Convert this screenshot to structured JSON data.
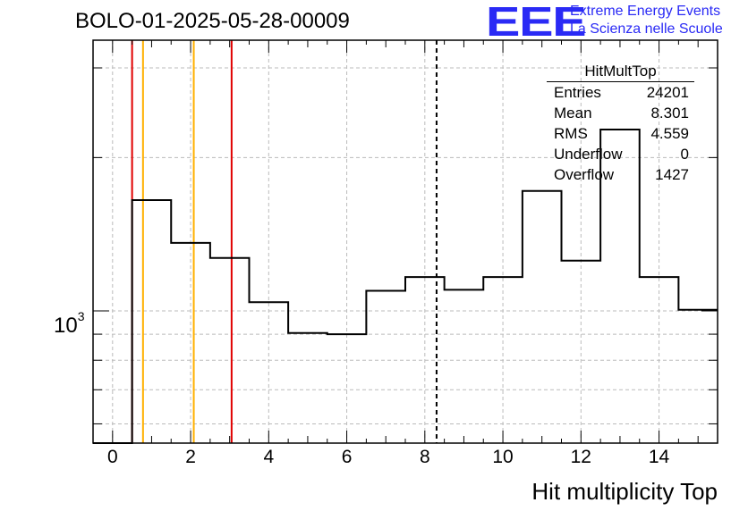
{
  "header": {
    "title": "BOLO-01-2025-05-28-00009",
    "logo_text": "EEE",
    "logo_line1": "Extreme Energy Events",
    "logo_line2": "La Scienza nelle Scuole"
  },
  "stats_box": {
    "title": "HitMultTop",
    "rows": [
      {
        "label": "Entries",
        "value": "24201"
      },
      {
        "label": "Mean",
        "value": "8.301"
      },
      {
        "label": "RMS",
        "value": "4.559"
      },
      {
        "label": "Underflow",
        "value": "0"
      },
      {
        "label": "Overflow",
        "value": "1427"
      }
    ]
  },
  "chart_data": {
    "type": "histogram",
    "title": "BOLO-01-2025-05-28-00009",
    "xlabel": "Hit multiplicity Top",
    "ylabel": "",
    "xlim": [
      -0.5,
      15.5
    ],
    "ylim": [
      550,
      3400
    ],
    "yscale": "log",
    "xticks": [
      0,
      2,
      4,
      6,
      8,
      10,
      12,
      14
    ],
    "ytick_base": "10",
    "ytick_exponent": "3",
    "grid": true,
    "bins": [
      {
        "x": 0,
        "value": 0
      },
      {
        "x": 1,
        "value": 1650
      },
      {
        "x": 2,
        "value": 1360
      },
      {
        "x": 3,
        "value": 1270
      },
      {
        "x": 4,
        "value": 1040
      },
      {
        "x": 5,
        "value": 905
      },
      {
        "x": 6,
        "value": 900
      },
      {
        "x": 7,
        "value": 1095
      },
      {
        "x": 8,
        "value": 1165
      },
      {
        "x": 9,
        "value": 1100
      },
      {
        "x": 10,
        "value": 1165
      },
      {
        "x": 11,
        "value": 1720
      },
      {
        "x": 12,
        "value": 1255
      },
      {
        "x": 13,
        "value": 2270
      },
      {
        "x": 14,
        "value": 1165
      },
      {
        "x": 15,
        "value": 1005
      }
    ],
    "vertical_lines": [
      {
        "x": 0.5,
        "color": "#e00000",
        "style": "solid"
      },
      {
        "x": 0.78,
        "color": "#ffb000",
        "style": "solid"
      },
      {
        "x": 2.08,
        "color": "#ffb000",
        "style": "solid"
      },
      {
        "x": 3.05,
        "color": "#e00000",
        "style": "solid"
      },
      {
        "x": 8.301,
        "color": "#000000",
        "style": "dashed"
      }
    ]
  }
}
